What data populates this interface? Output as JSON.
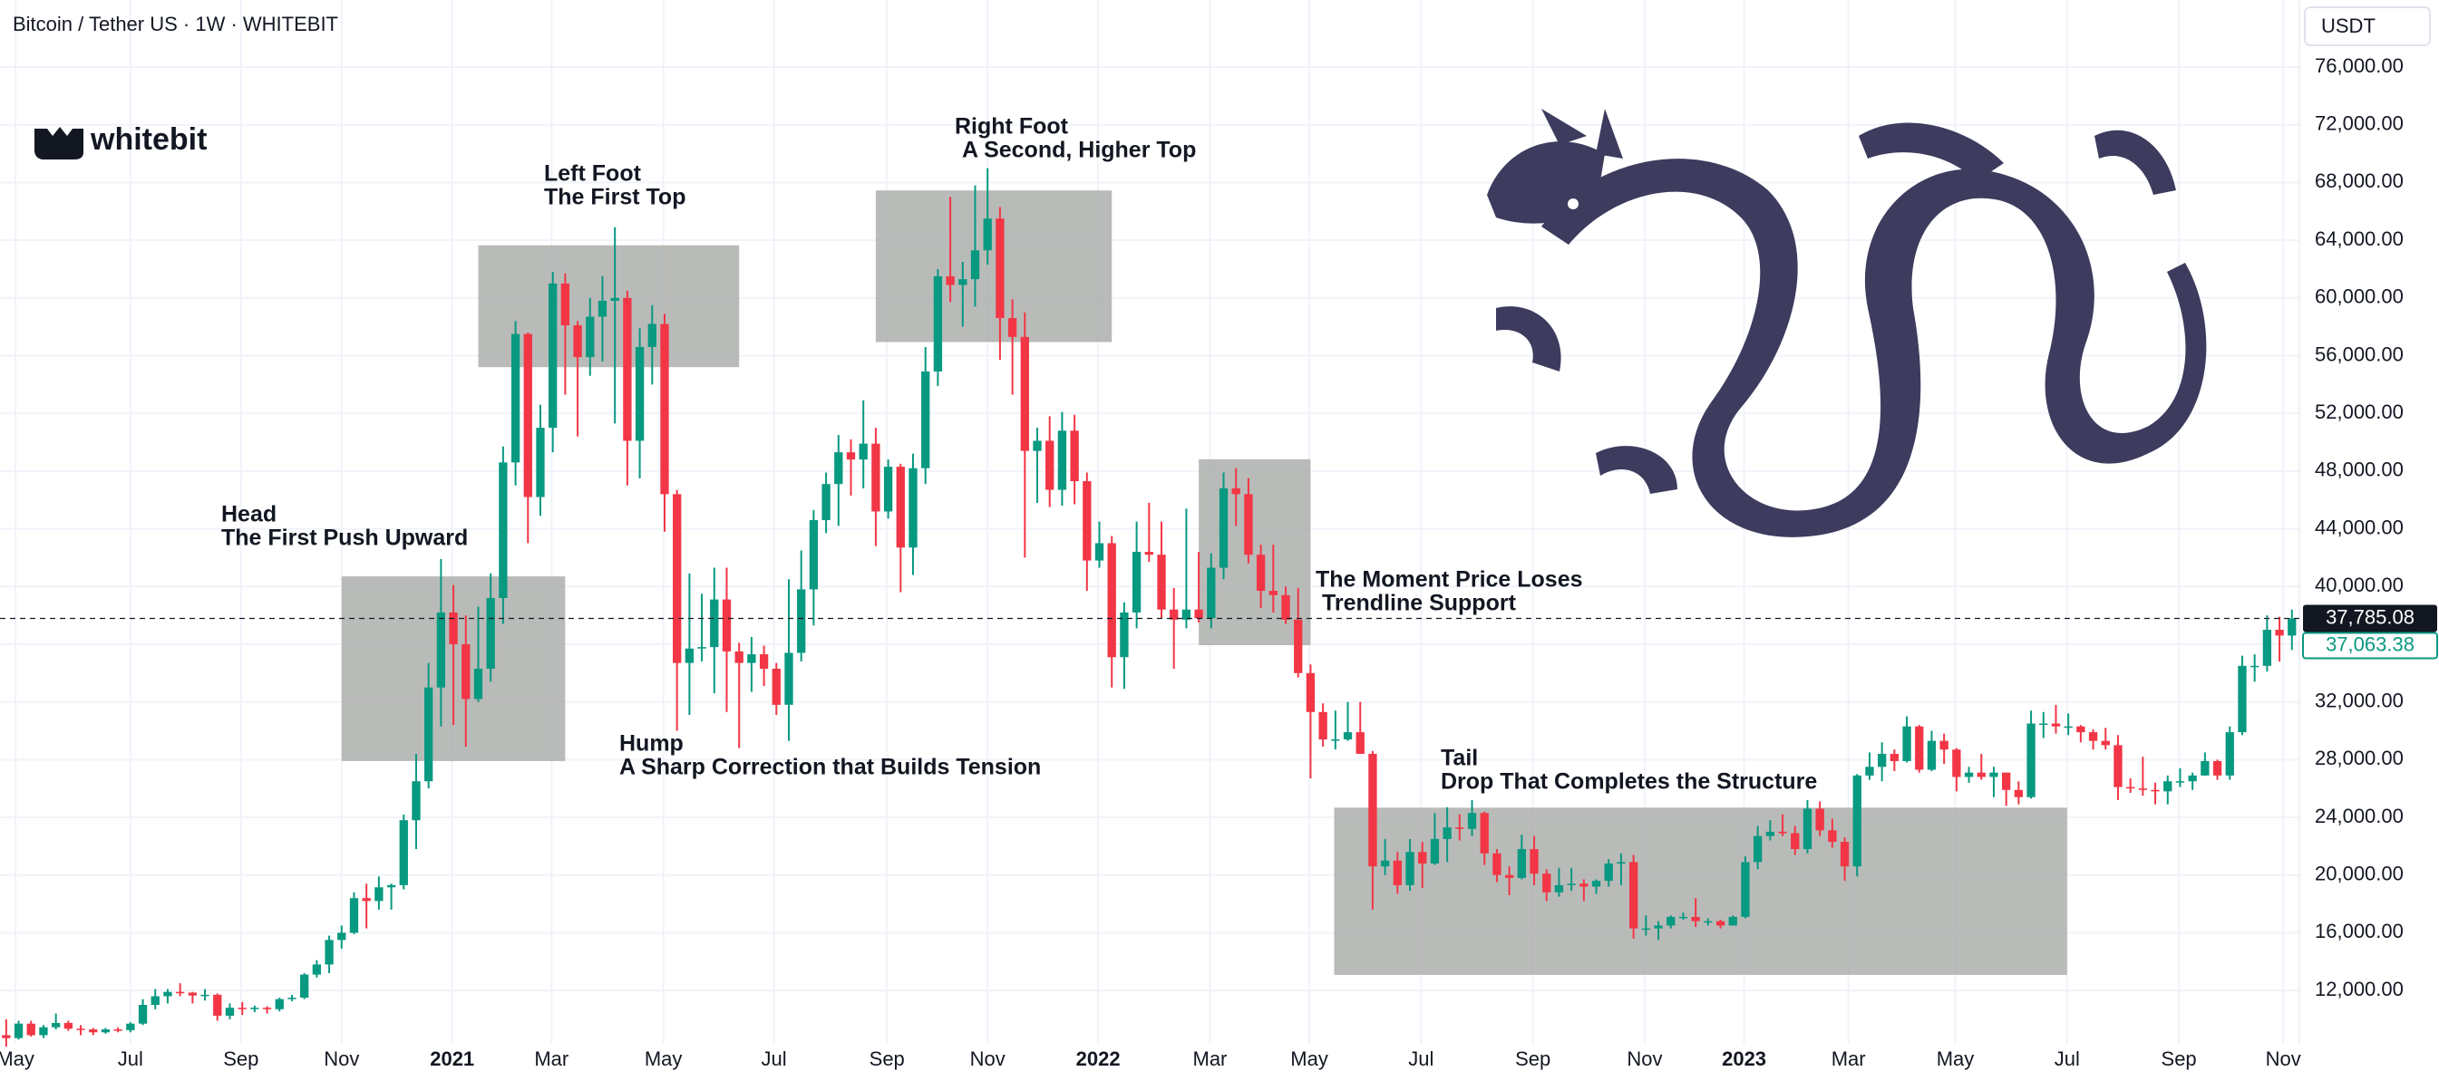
{
  "header": {
    "title": "Bitcoin / Tether US · 1W · WHITEBIT",
    "currency": "USDT",
    "logo": "whitebit"
  },
  "chart_data": {
    "type": "candlestick",
    "up_color": "#089981",
    "down_color": "#f23645",
    "grid": true,
    "xlim": [
      -0.5,
      184.6
    ],
    "ylim": [
      8300,
      80650
    ],
    "xticks": [
      {
        "value": 0.75,
        "label": "May"
      },
      {
        "value": 10,
        "label": "Jul"
      },
      {
        "value": 18.9,
        "label": "Sep"
      },
      {
        "value": 27,
        "label": "Nov"
      },
      {
        "value": 35.9,
        "label": "2021"
      },
      {
        "value": 43.9,
        "label": "Mar"
      },
      {
        "value": 52.9,
        "label": "May"
      },
      {
        "value": 61.8,
        "label": "Jul"
      },
      {
        "value": 70.9,
        "label": "Sep"
      },
      {
        "value": 79,
        "label": "Nov"
      },
      {
        "value": 87.9,
        "label": "2022"
      },
      {
        "value": 96.9,
        "label": "Mar"
      },
      {
        "value": 104.9,
        "label": "May"
      },
      {
        "value": 113.9,
        "label": "Jul"
      },
      {
        "value": 122.9,
        "label": "Sep"
      },
      {
        "value": 131.9,
        "label": "Nov"
      },
      {
        "value": 139.9,
        "label": "2023"
      },
      {
        "value": 148.3,
        "label": "Mar"
      },
      {
        "value": 156.9,
        "label": "May"
      },
      {
        "value": 165.9,
        "label": "Jul"
      },
      {
        "value": 174.9,
        "label": "Sep"
      },
      {
        "value": 183.3,
        "label": "Nov"
      }
    ],
    "yticks": [
      {
        "value": 12000,
        "label": "12,000.00"
      },
      {
        "value": 16000,
        "label": "16,000.00"
      },
      {
        "value": 20000,
        "label": "20,000.00"
      },
      {
        "value": 24000,
        "label": "24,000.00"
      },
      {
        "value": 28000,
        "label": "28,000.00"
      },
      {
        "value": 32000,
        "label": "32,000.00"
      },
      {
        "value": 36000,
        "label": "36,000.00"
      },
      {
        "value": 40000,
        "label": "40,000.00"
      },
      {
        "value": 44000,
        "label": "44,000.00"
      },
      {
        "value": 48000,
        "label": "48,000.00"
      },
      {
        "value": 52000,
        "label": "52,000.00"
      },
      {
        "value": 56000,
        "label": "56,000.00"
      },
      {
        "value": 60000,
        "label": "60,000.00"
      },
      {
        "value": 64000,
        "label": "64,000.00"
      },
      {
        "value": 68000,
        "label": "68,000.00"
      },
      {
        "value": 72000,
        "label": "72,000.00"
      },
      {
        "value": 76000,
        "label": "76,000.00"
      }
    ],
    "price_lines": [
      {
        "value": 37785.08,
        "label": "37,785.08"
      },
      {
        "value": 37063.38,
        "label": "37,063.38"
      }
    ],
    "boxes": [
      {
        "x": [
          27,
          45
        ],
        "y": [
          27900,
          40700
        ]
      },
      {
        "x": [
          38,
          59
        ],
        "y": [
          55200,
          63650
        ]
      },
      {
        "x": [
          70,
          89
        ],
        "y": [
          56940,
          67450
        ]
      },
      {
        "x": [
          96,
          105
        ],
        "y": [
          35930,
          48820
        ]
      },
      {
        "x": [
          106.9,
          165.9
        ],
        "y": [
          13080,
          24670
        ]
      }
    ],
    "annotations": [
      {
        "title": "Head",
        "text": "The First Push Upward"
      },
      {
        "title": "Left Foot",
        "text": "The First Top"
      },
      {
        "title": "Right Foot",
        "text": "A Second, Higher Top"
      },
      {
        "title": "Hump",
        "text": "A Sharp Correction that Builds Tension"
      },
      {
        "title": "The Moment Price Loses",
        "text": "Trendline Support"
      },
      {
        "title": "Tail",
        "text": "Drop That Completes the Structure"
      }
    ],
    "ohlc": [
      [
        8900,
        10000,
        8100,
        8700
      ],
      [
        8700,
        9900,
        8600,
        9700
      ],
      [
        9700,
        9900,
        8800,
        8900
      ],
      [
        8900,
        9600,
        8700,
        9450
      ],
      [
        9450,
        10400,
        9300,
        9750
      ],
      [
        9750,
        9900,
        9200,
        9350
      ],
      [
        9350,
        9600,
        8900,
        9300
      ],
      [
        9300,
        9400,
        8900,
        9100
      ],
      [
        9100,
        9400,
        9000,
        9300
      ],
      [
        9300,
        9450,
        9100,
        9250
      ],
      [
        9250,
        9800,
        9100,
        9700
      ],
      [
        9700,
        11400,
        9600,
        11000
      ],
      [
        11000,
        12100,
        10700,
        11600
      ],
      [
        11600,
        12100,
        11100,
        11900
      ],
      [
        11900,
        12500,
        11600,
        11850
      ],
      [
        11850,
        11900,
        11100,
        11650
      ],
      [
        11650,
        12100,
        11300,
        11700
      ],
      [
        11700,
        11800,
        9900,
        10250
      ],
      [
        10250,
        11100,
        10000,
        10800
      ],
      [
        10800,
        11200,
        10300,
        10750
      ],
      [
        10750,
        10950,
        10500,
        10800
      ],
      [
        10800,
        10900,
        10400,
        10700
      ],
      [
        10700,
        11500,
        10550,
        11400
      ],
      [
        11400,
        11700,
        11250,
        11500
      ],
      [
        11500,
        13200,
        11400,
        13100
      ],
      [
        13100,
        14100,
        12900,
        13800
      ],
      [
        13800,
        15800,
        13200,
        15500
      ],
      [
        15500,
        16500,
        14900,
        16000
      ],
      [
        16000,
        18800,
        15900,
        18400
      ],
      [
        18400,
        19400,
        16300,
        18200
      ],
      [
        18200,
        19900,
        17600,
        19150
      ],
      [
        19150,
        19400,
        17600,
        19300
      ],
      [
        19300,
        24200,
        19000,
        23800
      ],
      [
        23800,
        28400,
        21800,
        26500
      ],
      [
        26500,
        34700,
        26000,
        33000
      ],
      [
        33000,
        41900,
        30300,
        38200
      ],
      [
        38200,
        40100,
        30400,
        36000
      ],
      [
        36000,
        38000,
        28900,
        32200
      ],
      [
        32200,
        38600,
        32000,
        34300
      ],
      [
        34300,
        40900,
        33400,
        39200
      ],
      [
        39200,
        49700,
        37400,
        48600
      ],
      [
        48600,
        58400,
        47000,
        57500
      ],
      [
        57500,
        57600,
        43000,
        46200
      ],
      [
        46200,
        52600,
        44900,
        51000
      ],
      [
        51000,
        61800,
        49300,
        61000
      ],
      [
        61000,
        61700,
        53300,
        58100
      ],
      [
        58100,
        58400,
        50400,
        55900
      ],
      [
        55900,
        60000,
        54600,
        58700
      ],
      [
        58700,
        61500,
        55600,
        59800
      ],
      [
        59800,
        64900,
        51300,
        60000
      ],
      [
        60000,
        60500,
        47000,
        50100
      ],
      [
        50100,
        57900,
        47500,
        56600
      ],
      [
        56600,
        59500,
        54000,
        58200
      ],
      [
        58200,
        58900,
        43800,
        46400
      ],
      [
        46400,
        46700,
        30000,
        34700
      ],
      [
        34700,
        40900,
        31100,
        35700
      ],
      [
        35700,
        39500,
        34800,
        35800
      ],
      [
        35800,
        41300,
        32600,
        39100
      ],
      [
        39100,
        41300,
        31300,
        35500
      ],
      [
        35500,
        36100,
        28800,
        34700
      ],
      [
        34700,
        36500,
        32700,
        35300
      ],
      [
        35300,
        35900,
        33100,
        34300
      ],
      [
        34300,
        34700,
        31100,
        31800
      ],
      [
        31800,
        40500,
        29300,
        35400
      ],
      [
        35400,
        42500,
        34800,
        39800
      ],
      [
        39800,
        45300,
        37300,
        44600
      ],
      [
        44600,
        47900,
        43700,
        47100
      ],
      [
        47100,
        50500,
        44200,
        49300
      ],
      [
        49300,
        50200,
        46300,
        48800
      ],
      [
        48800,
        52900,
        46800,
        49900
      ],
      [
        49900,
        51000,
        42800,
        45200
      ],
      [
        45200,
        48800,
        44700,
        48300
      ],
      [
        48300,
        48500,
        39600,
        42700
      ],
      [
        42700,
        49200,
        40800,
        48200
      ],
      [
        48200,
        56600,
        47100,
        54900
      ],
      [
        54900,
        62000,
        53900,
        61500
      ],
      [
        61500,
        67000,
        59700,
        60900
      ],
      [
        60900,
        62500,
        58000,
        61300
      ],
      [
        61300,
        67800,
        59400,
        63300
      ],
      [
        63300,
        69000,
        62300,
        65500
      ],
      [
        65500,
        66300,
        55700,
        58600
      ],
      [
        58600,
        59900,
        53300,
        57300
      ],
      [
        57300,
        59000,
        42000,
        49400
      ],
      [
        49400,
        51000,
        45800,
        50100
      ],
      [
        50100,
        51800,
        45500,
        46700
      ],
      [
        46700,
        52100,
        45600,
        50800
      ],
      [
        50800,
        51900,
        45700,
        47300
      ],
      [
        47300,
        47900,
        39700,
        41800
      ],
      [
        41800,
        44500,
        41300,
        43000
      ],
      [
        43000,
        43500,
        33000,
        35100
      ],
      [
        35100,
        38900,
        32900,
        38200
      ],
      [
        38200,
        44500,
        37100,
        42400
      ],
      [
        42400,
        45800,
        41700,
        42200
      ],
      [
        42200,
        44500,
        37800,
        38400
      ],
      [
        38400,
        39900,
        34300,
        37700
      ],
      [
        37700,
        45400,
        37100,
        38400
      ],
      [
        38400,
        42400,
        37500,
        37800
      ],
      [
        37800,
        42300,
        37100,
        41300
      ],
      [
        41300,
        47900,
        40500,
        46800
      ],
      [
        46800,
        48200,
        44200,
        46400
      ],
      [
        46400,
        47500,
        41600,
        42200
      ],
      [
        42200,
        42900,
        38500,
        39700
      ],
      [
        39700,
        42900,
        38200,
        39400
      ],
      [
        39400,
        40000,
        37400,
        37700
      ],
      [
        37700,
        39900,
        33700,
        34000
      ],
      [
        34000,
        34600,
        26700,
        31300
      ],
      [
        31300,
        31900,
        28900,
        29400
      ],
      [
        29400,
        31400,
        28700,
        29400
      ],
      [
        29400,
        32000,
        29300,
        29900
      ],
      [
        29900,
        32000,
        28400,
        28400
      ],
      [
        28400,
        28600,
        17600,
        20600
      ],
      [
        20600,
        22500,
        20000,
        21000
      ],
      [
        21000,
        21600,
        18700,
        19300
      ],
      [
        19300,
        22500,
        18900,
        21600
      ],
      [
        21600,
        22300,
        19100,
        20800
      ],
      [
        20800,
        24300,
        20700,
        22500
      ],
      [
        22500,
        24700,
        20900,
        23300
      ],
      [
        23300,
        24200,
        22400,
        23200
      ],
      [
        23200,
        25200,
        22700,
        24300
      ],
      [
        24300,
        24400,
        20700,
        21500
      ],
      [
        21500,
        21800,
        19500,
        20000
      ],
      [
        20000,
        20600,
        18600,
        19800
      ],
      [
        19800,
        22800,
        19700,
        21800
      ],
      [
        21800,
        22700,
        19300,
        20100
      ],
      [
        20100,
        20400,
        18200,
        18800
      ],
      [
        18800,
        20500,
        18500,
        19300
      ],
      [
        19300,
        20500,
        18900,
        19400
      ],
      [
        19400,
        19700,
        18200,
        19200
      ],
      [
        19200,
        19700,
        18700,
        19600
      ],
      [
        19600,
        21100,
        19200,
        20800
      ],
      [
        20800,
        21500,
        19300,
        20900
      ],
      [
        20900,
        21400,
        15600,
        16300
      ],
      [
        16300,
        17200,
        15800,
        16300
      ],
      [
        16300,
        16800,
        15500,
        16500
      ],
      [
        16500,
        17200,
        16300,
        17100
      ],
      [
        17100,
        17400,
        16900,
        17100
      ],
      [
        17100,
        18400,
        16400,
        16800
      ],
      [
        16800,
        17000,
        16500,
        16800
      ],
      [
        16800,
        16900,
        16300,
        16500
      ],
      [
        16500,
        17200,
        16500,
        17100
      ],
      [
        17100,
        21300,
        17000,
        20900
      ],
      [
        20900,
        23400,
        20400,
        22700
      ],
      [
        22700,
        23800,
        22400,
        23000
      ],
      [
        23000,
        24200,
        22700,
        22900
      ],
      [
        22900,
        23400,
        21400,
        21800
      ],
      [
        21800,
        25200,
        21500,
        24600
      ],
      [
        24600,
        25100,
        22700,
        23100
      ],
      [
        23100,
        23900,
        21900,
        22300
      ],
      [
        22300,
        22600,
        19600,
        20600
      ],
      [
        20600,
        27000,
        19900,
        26900
      ],
      [
        26900,
        28500,
        26600,
        27500
      ],
      [
        27500,
        29200,
        26500,
        28400
      ],
      [
        28400,
        28700,
        27200,
        27900
      ],
      [
        27900,
        31000,
        27800,
        30300
      ],
      [
        30300,
        30400,
        27100,
        27300
      ],
      [
        27300,
        30000,
        27200,
        29300
      ],
      [
        29300,
        29800,
        27700,
        28700
      ],
      [
        28700,
        28800,
        25800,
        26800
      ],
      [
        26800,
        27500,
        26400,
        27100
      ],
      [
        27100,
        28400,
        26600,
        26800
      ],
      [
        26800,
        27500,
        25400,
        27100
      ],
      [
        27100,
        27100,
        24800,
        25900
      ],
      [
        25900,
        26500,
        24900,
        25400
      ],
      [
        25400,
        31400,
        25300,
        30500
      ],
      [
        30500,
        31300,
        29500,
        30500
      ],
      [
        30500,
        31800,
        29800,
        30300
      ],
      [
        30300,
        31200,
        29700,
        30300
      ],
      [
        30300,
        30400,
        29200,
        29900
      ],
      [
        29900,
        30100,
        28700,
        29300
      ],
      [
        29300,
        30200,
        28700,
        29000
      ],
      [
        29000,
        29700,
        25200,
        26100
      ],
      [
        26100,
        26700,
        25700,
        26000
      ],
      [
        26000,
        28200,
        25500,
        25900
      ],
      [
        25900,
        26400,
        24900,
        25800
      ],
      [
        25800,
        26900,
        24900,
        26500
      ],
      [
        26500,
        27400,
        26100,
        26500
      ],
      [
        26500,
        27100,
        25900,
        26900
      ],
      [
        26900,
        28500,
        26900,
        27900
      ],
      [
        27900,
        28000,
        26600,
        26900
      ],
      [
        26900,
        30300,
        26600,
        29900
      ],
      [
        29900,
        35200,
        29700,
        34500
      ],
      [
        34500,
        35300,
        33400,
        34500
      ],
      [
        34500,
        38000,
        34100,
        37000
      ],
      [
        37000,
        37900,
        34800,
        36600
      ],
      [
        36600,
        38400,
        35600,
        37785.08
      ]
    ]
  }
}
